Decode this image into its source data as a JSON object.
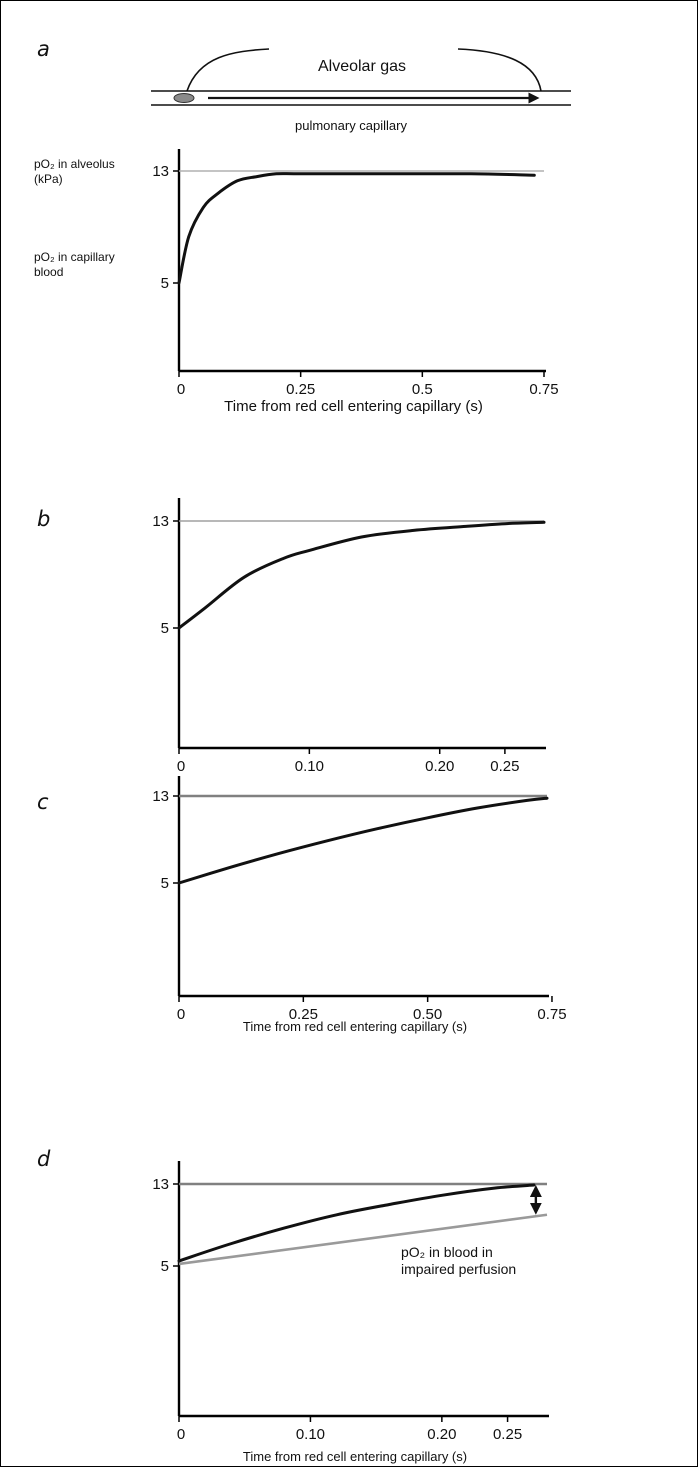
{
  "panel_letters": [
    "a",
    "b",
    "c",
    "d"
  ],
  "schematic": {
    "alveolar_label": "Alveolar gas",
    "capillary_label": "pulmonary capillary"
  },
  "annotations": {
    "a_top_label_line1": "pO₂ in alveolus",
    "a_top_label_line2": "(kPa)",
    "a_bottom_label_line1": "pO₂ in capillary",
    "a_bottom_label_line2": "blood",
    "d_line_label_line1": "pO₂ in blood in",
    "d_line_label_line2": "impaired perfusion"
  },
  "colors": {
    "curve": "#111111",
    "alveolar_line_a": "#b0b0b0",
    "alveolar_line_b": "#a0a0a0",
    "alveolar_line_cd": "#808080",
    "impaired_perfusion_line": "#9a9a9a",
    "axis": "#000000"
  },
  "chart_data": [
    {
      "panel": "a",
      "type": "line",
      "title": "",
      "xlabel": "Time from red cell entering capillary (s)",
      "ylabel": "",
      "xlim": [
        0,
        0.75
      ],
      "ylim": [
        0,
        13
      ],
      "xticks": [
        0,
        0.25,
        0.5,
        0.75
      ],
      "xtick_labels": [
        "0",
        "0.25",
        "0.5",
        "0.75"
      ],
      "yticks": [
        13,
        5
      ],
      "ytick_labels": [
        "13",
        "5"
      ],
      "series": [
        {
          "style": "reference",
          "x": [
            0,
            0.75
          ],
          "y": [
            13,
            13
          ]
        },
        {
          "style": "curve",
          "x": [
            0,
            0.02,
            0.05,
            0.08,
            0.12,
            0.16,
            0.2,
            0.25,
            0.4,
            0.6,
            0.73
          ],
          "y": [
            5,
            8.3,
            10.4,
            11.4,
            12.3,
            12.6,
            12.8,
            12.8,
            12.8,
            12.8,
            12.7
          ]
        }
      ]
    },
    {
      "panel": "b",
      "type": "line",
      "title": "",
      "xlabel": "",
      "ylabel": "",
      "xlim": [
        0,
        0.28
      ],
      "ylim": [
        0,
        14
      ],
      "xticks": [
        0,
        0.1,
        0.2,
        0.25
      ],
      "xtick_labels": [
        "0",
        "0.10",
        "0.20",
        "0.25"
      ],
      "yticks": [
        13,
        5
      ],
      "ytick_labels": [
        "13",
        "5"
      ],
      "series": [
        {
          "style": "reference",
          "x": [
            0,
            0.28
          ],
          "y": [
            13,
            13
          ]
        },
        {
          "style": "curve",
          "x": [
            0,
            0.02,
            0.05,
            0.08,
            0.1,
            0.14,
            0.18,
            0.22,
            0.25,
            0.28
          ],
          "y": [
            5,
            6.5,
            8.8,
            10.2,
            10.8,
            11.8,
            12.3,
            12.6,
            12.8,
            12.9
          ]
        }
      ]
    },
    {
      "panel": "c",
      "type": "line",
      "title": "",
      "xlabel": "Time from red cell entering capillary (s)",
      "ylabel": "",
      "xlim": [
        0,
        0.74
      ],
      "ylim": [
        0,
        14
      ],
      "xticks": [
        0,
        0.25,
        0.5,
        0.75
      ],
      "xtick_labels": [
        "0",
        "0.25",
        "0.50",
        "0.75"
      ],
      "yticks": [
        13,
        5
      ],
      "ytick_labels": [
        "13",
        "5"
      ],
      "series": [
        {
          "style": "reference",
          "x": [
            0,
            0.74
          ],
          "y": [
            13,
            13
          ]
        },
        {
          "style": "curve",
          "x": [
            0,
            0.1,
            0.2,
            0.3,
            0.4,
            0.5,
            0.6,
            0.7,
            0.74
          ],
          "y": [
            5,
            6.4,
            7.7,
            8.9,
            10,
            11,
            11.9,
            12.6,
            12.8
          ]
        }
      ]
    },
    {
      "panel": "d",
      "type": "line",
      "title": "",
      "xlabel": "Time from red cell entering capillary (s)",
      "ylabel": "",
      "xlim": [
        0,
        0.28
      ],
      "ylim": [
        0,
        14
      ],
      "xticks": [
        0,
        0.1,
        0.2,
        0.25
      ],
      "xtick_labels": [
        "0",
        "0.10",
        "0.20",
        "0.25"
      ],
      "yticks": [
        13,
        5
      ],
      "ytick_labels": [
        "13",
        "5"
      ],
      "series": [
        {
          "style": "reference",
          "x": [
            0,
            0.28
          ],
          "y": [
            13,
            13
          ]
        },
        {
          "style": "curve",
          "x": [
            0,
            0.04,
            0.08,
            0.12,
            0.16,
            0.2,
            0.24,
            0.27
          ],
          "y": [
            5.5,
            7.2,
            8.7,
            10,
            11,
            11.9,
            12.6,
            12.9
          ]
        },
        {
          "style": "impaired",
          "name": "pO₂ in blood in impaired perfusion",
          "x": [
            0,
            0.28
          ],
          "y": [
            5.2,
            10
          ]
        },
        {
          "style": "arrow",
          "x": [
            0.27,
            0.27
          ],
          "y": [
            12.9,
            10
          ]
        }
      ]
    }
  ]
}
